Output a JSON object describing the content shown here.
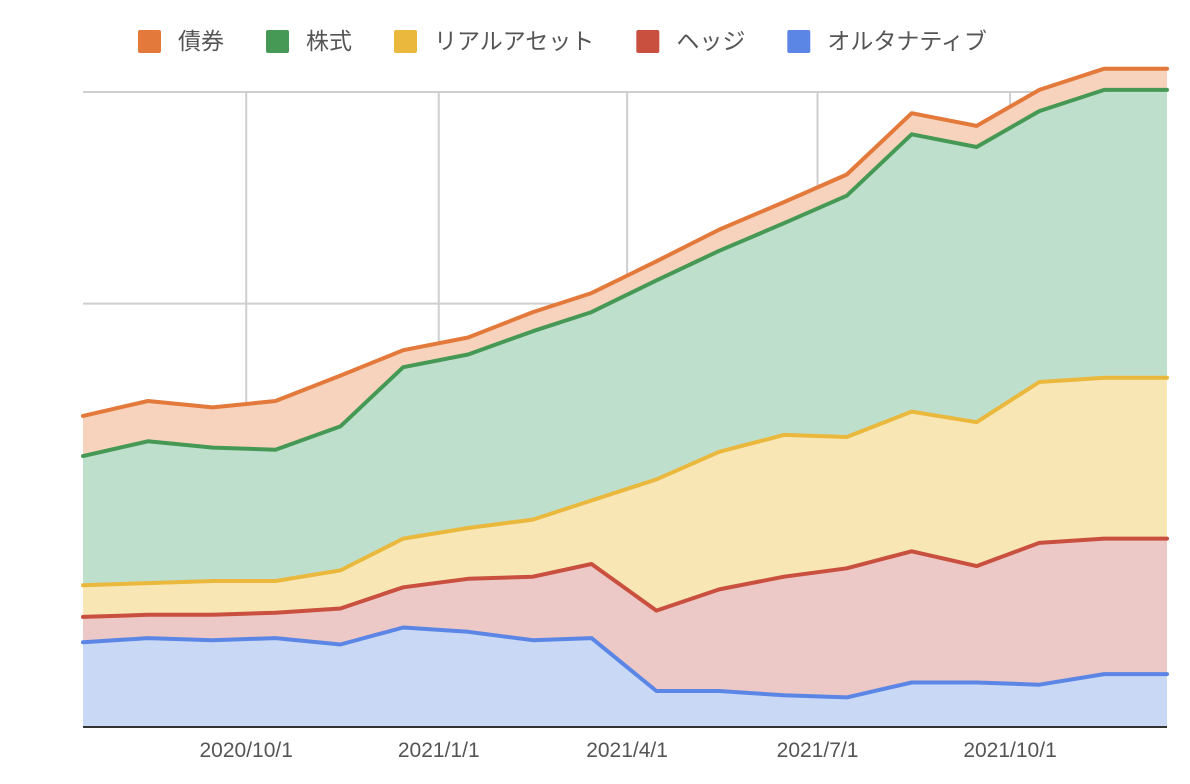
{
  "chart_data": {
    "type": "area",
    "stacked": true,
    "title": "",
    "xlabel": "",
    "ylabel": "",
    "y_ticks_visible": false,
    "ylim": [
      0,
      300
    ],
    "grid": true,
    "legend_position": "top-left",
    "x": [
      "2020-07-15",
      "2020-08-15",
      "2020-09-15",
      "2020-10-15",
      "2020-11-15",
      "2020-12-15",
      "2021-01-15",
      "2021-02-15",
      "2021-03-15",
      "2021-04-15",
      "2021-05-15",
      "2021-06-15",
      "2021-07-15",
      "2021-08-15",
      "2021-09-15",
      "2021-10-15",
      "2021-11-15",
      "2021-12-15"
    ],
    "x_ticks": [
      {
        "label": "2020/10/1",
        "date": "2020-10-01"
      },
      {
        "label": "2021/1/1",
        "date": "2021-01-01"
      },
      {
        "label": "2021/4/1",
        "date": "2021-04-01"
      },
      {
        "label": "2021/7/1",
        "date": "2021-07-01"
      },
      {
        "label": "2021/10/1",
        "date": "2021-10-01"
      }
    ],
    "series": [
      {
        "name": "オルタナティブ",
        "color": "#5b86e5",
        "fill": "#c9d9f5",
        "values": [
          40,
          42,
          41,
          42,
          39,
          47,
          45,
          41,
          42,
          17,
          17,
          15,
          14,
          21,
          21,
          20,
          25,
          25
        ]
      },
      {
        "name": "ヘッジ",
        "color": "#c94f3e",
        "fill": "#ecc8c6",
        "values": [
          12,
          11,
          12,
          12,
          17,
          19,
          25,
          30,
          35,
          38,
          48,
          56,
          61,
          62,
          55,
          67,
          64,
          64
        ]
      },
      {
        "name": "リアルアセット",
        "color": "#e9b83d",
        "fill": "#f8e6b4",
        "values": [
          15,
          15,
          16,
          15,
          18,
          23,
          24,
          27,
          30,
          62,
          65,
          67,
          62,
          66,
          68,
          76,
          76,
          76
        ]
      },
      {
        "name": "株式",
        "color": "#469955",
        "fill": "#bfdfcd",
        "values": [
          61,
          67,
          63,
          62,
          68,
          81,
          82,
          89,
          89,
          94,
          95,
          100,
          114,
          131,
          130,
          128,
          136,
          136
        ]
      },
      {
        "name": "債券",
        "color": "#e3793a",
        "fill": "#f7d2bc",
        "values": [
          19,
          19,
          19,
          23,
          24,
          8,
          8,
          9,
          9,
          9,
          10,
          10,
          10,
          10,
          10,
          10,
          10,
          10
        ]
      }
    ]
  }
}
